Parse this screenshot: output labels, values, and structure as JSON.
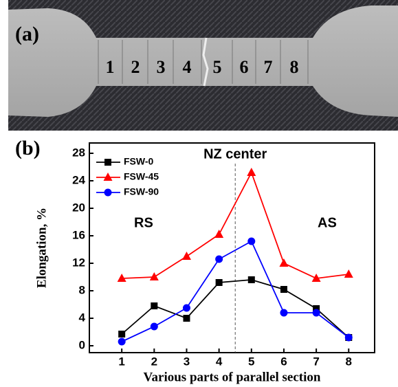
{
  "photo": {
    "label": "(a)",
    "sections": [
      "1",
      "2",
      "3",
      "4",
      "5",
      "6",
      "7",
      "8"
    ]
  },
  "chart_data": {
    "type": "line",
    "panel_label": "(b)",
    "x_label": "Various parts of parallel section",
    "y_label": "Elongation, %",
    "x": [
      1,
      2,
      3,
      4,
      5,
      6,
      7,
      8
    ],
    "series": [
      {
        "name": "FSW-0",
        "color": "#000000",
        "marker": "square",
        "values": [
          1.7,
          5.8,
          4.0,
          9.2,
          9.6,
          8.2,
          5.4,
          1.2
        ]
      },
      {
        "name": "FSW-45",
        "color": "#ff0000",
        "marker": "triangle",
        "values": [
          9.8,
          10.0,
          13.0,
          16.2,
          25.2,
          12.0,
          9.8,
          10.4
        ]
      },
      {
        "name": "FSW-90",
        "color": "#0000ff",
        "marker": "circle",
        "values": [
          0.6,
          2.8,
          5.5,
          12.6,
          15.2,
          4.8,
          4.8,
          1.2
        ]
      }
    ],
    "xlim": [
      0,
      8.8
    ],
    "ylim": [
      -1,
      29.5
    ],
    "xticks": [
      1,
      2,
      3,
      4,
      5,
      6,
      7,
      8
    ],
    "yticks": [
      0,
      4,
      8,
      12,
      16,
      20,
      24,
      28
    ],
    "vline": 4.5,
    "annotations": [
      "NZ center",
      "RS",
      "AS"
    ],
    "legend": "upper-left"
  }
}
